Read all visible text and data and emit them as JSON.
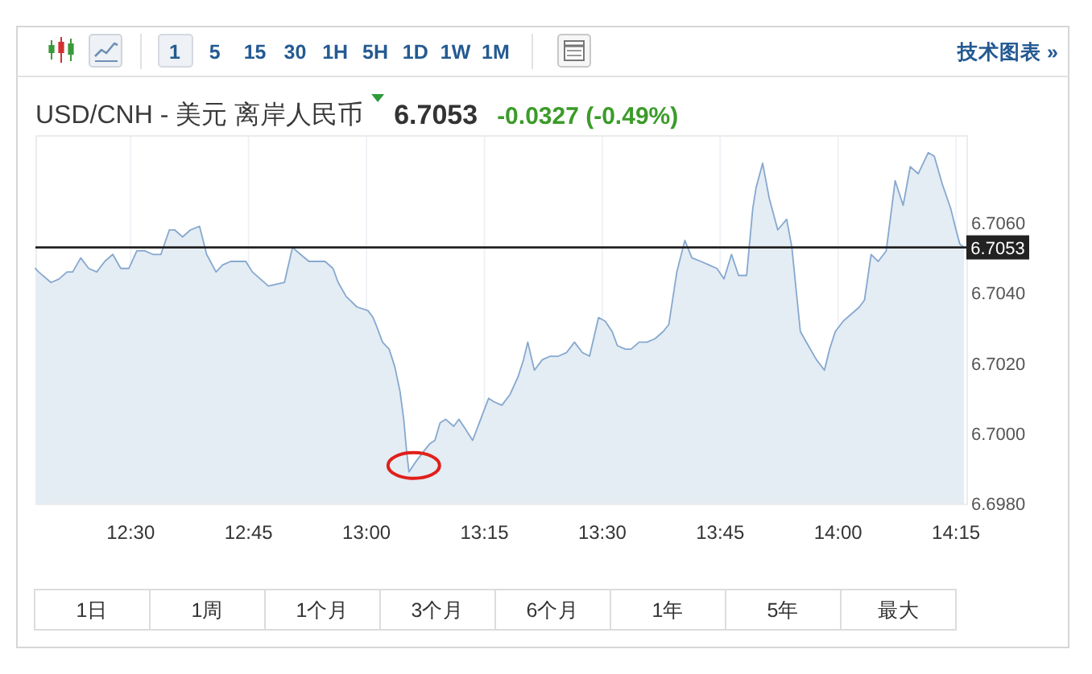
{
  "chart_data": {
    "type": "area",
    "title": "USD/CNH - 美元 离岸人民币",
    "subtitle": "6.7053",
    "annotations": [
      "-0.0327 (-0.49%)",
      "1 5 15 30 1H 5H 1D 1W 1M",
      "技术图表 »",
      "1日",
      "1周",
      "1个月",
      "3个月",
      "6个月",
      "1年",
      "5年",
      "最大"
    ],
    "x": [
      12.298,
      12.305,
      12.331,
      12.348,
      12.365,
      12.377,
      12.394,
      12.411,
      12.428,
      12.445,
      12.462,
      12.479,
      12.496,
      12.513,
      12.53,
      12.547,
      12.564,
      12.582,
      12.593,
      12.61,
      12.627,
      12.646,
      12.661,
      12.681,
      12.695,
      12.712,
      12.744,
      12.758,
      12.775,
      12.792,
      12.826,
      12.843,
      12.86,
      12.878,
      12.912,
      12.929,
      12.94,
      12.957,
      12.98,
      13.003,
      13.014,
      13.02,
      13.034,
      13.048,
      13.06,
      13.071,
      13.079,
      13.085,
      13.09,
      13.105,
      13.122,
      13.134,
      13.145,
      13.156,
      13.168,
      13.185,
      13.196,
      13.211,
      13.225,
      13.242,
      13.259,
      13.27,
      13.287,
      13.304,
      13.321,
      13.333,
      13.342,
      13.356,
      13.373,
      13.39,
      13.407,
      13.424,
      13.441,
      13.458,
      13.473,
      13.492,
      13.506,
      13.521,
      13.532,
      13.549,
      13.561,
      13.578,
      13.595,
      13.612,
      13.629,
      13.641,
      13.658,
      13.675,
      13.69,
      13.709,
      13.726,
      13.743,
      13.758,
      13.774,
      13.789,
      13.806,
      13.819,
      13.826,
      13.84,
      13.854,
      13.872,
      13.891,
      13.902,
      13.92,
      13.937,
      13.954,
      13.971,
      13.982,
      13.994,
      14.011,
      14.028,
      14.045,
      14.056,
      14.07,
      14.085,
      14.102,
      14.121,
      14.138,
      14.153,
      14.17,
      14.191,
      14.204,
      14.221,
      14.239,
      14.25,
      14.258,
      14.267
    ],
    "values": [
      6.7047,
      6.7046,
      6.7043,
      6.7044,
      6.7046,
      6.7046,
      6.705,
      6.7047,
      6.7046,
      6.7049,
      6.7051,
      6.7047,
      6.7047,
      6.7052,
      6.7052,
      6.7051,
      6.7051,
      6.7058,
      6.7058,
      6.7056,
      6.7058,
      6.7059,
      6.7051,
      6.7046,
      6.7048,
      6.7049,
      6.7049,
      6.7046,
      6.7044,
      6.7042,
      6.7043,
      6.7053,
      6.7051,
      6.7049,
      6.7049,
      6.7047,
      6.7043,
      6.7039,
      6.7036,
      6.7035,
      6.7033,
      6.7031,
      6.7026,
      6.7024,
      6.7019,
      6.7012,
      6.7004,
      6.6995,
      6.6989,
      6.6992,
      6.6995,
      6.6997,
      6.6998,
      6.7003,
      6.7004,
      6.7002,
      6.7004,
      6.7001,
      6.6998,
      6.7004,
      6.701,
      6.7009,
      6.7008,
      6.7011,
      6.7016,
      6.7021,
      6.7026,
      6.7018,
      6.7021,
      6.7022,
      6.7022,
      6.7023,
      6.7026,
      6.7023,
      6.7022,
      6.7033,
      6.7032,
      6.7029,
      6.7025,
      6.7024,
      6.7024,
      6.7026,
      6.7026,
      6.7027,
      6.7029,
      6.7031,
      6.7046,
      6.7055,
      6.705,
      6.7049,
      6.7048,
      6.7047,
      6.7044,
      6.7051,
      6.7045,
      6.7045,
      6.7064,
      6.707,
      6.7077,
      6.7067,
      6.7058,
      6.7061,
      6.7053,
      6.7029,
      6.7025,
      6.7021,
      6.7018,
      6.7024,
      6.7029,
      6.7032,
      6.7034,
      6.7036,
      6.7038,
      6.7051,
      6.7049,
      6.7052,
      6.7072,
      6.7065,
      6.7076,
      6.7074,
      6.708,
      6.7079,
      6.7071,
      6.7064,
      6.7058,
      6.7054,
      6.7053
    ],
    "color": "#86a8cf",
    "xlim": [
      12.298,
      14.272
    ],
    "xticks": [
      {
        "value": 12.5,
        "label": "12:30"
      },
      {
        "value": 12.75,
        "label": "12:45"
      },
      {
        "value": 13,
        "label": "13:00"
      },
      {
        "value": 13.25,
        "label": "13:15"
      },
      {
        "value": 13.5,
        "label": "13:30"
      },
      {
        "value": 13.75,
        "label": "13:45"
      },
      {
        "value": 14,
        "label": "14:00"
      },
      {
        "value": 14.25,
        "label": "14:15"
      }
    ],
    "ylim": [
      6.698,
      6.7085
    ],
    "yticks": [
      {
        "value": 6.698,
        "label": "6.6980"
      },
      {
        "value": 6.7,
        "label": "6.7000"
      },
      {
        "value": 6.702,
        "label": "6.7020"
      },
      {
        "value": 6.704,
        "label": "6.7040"
      },
      {
        "value": 6.706,
        "label": "6.7060"
      }
    ],
    "ref_lines": [
      {
        "axis": "y",
        "value": 6.7053,
        "label": "6.7053",
        "color": "#222222"
      }
    ],
    "grid": "x"
  }
}
